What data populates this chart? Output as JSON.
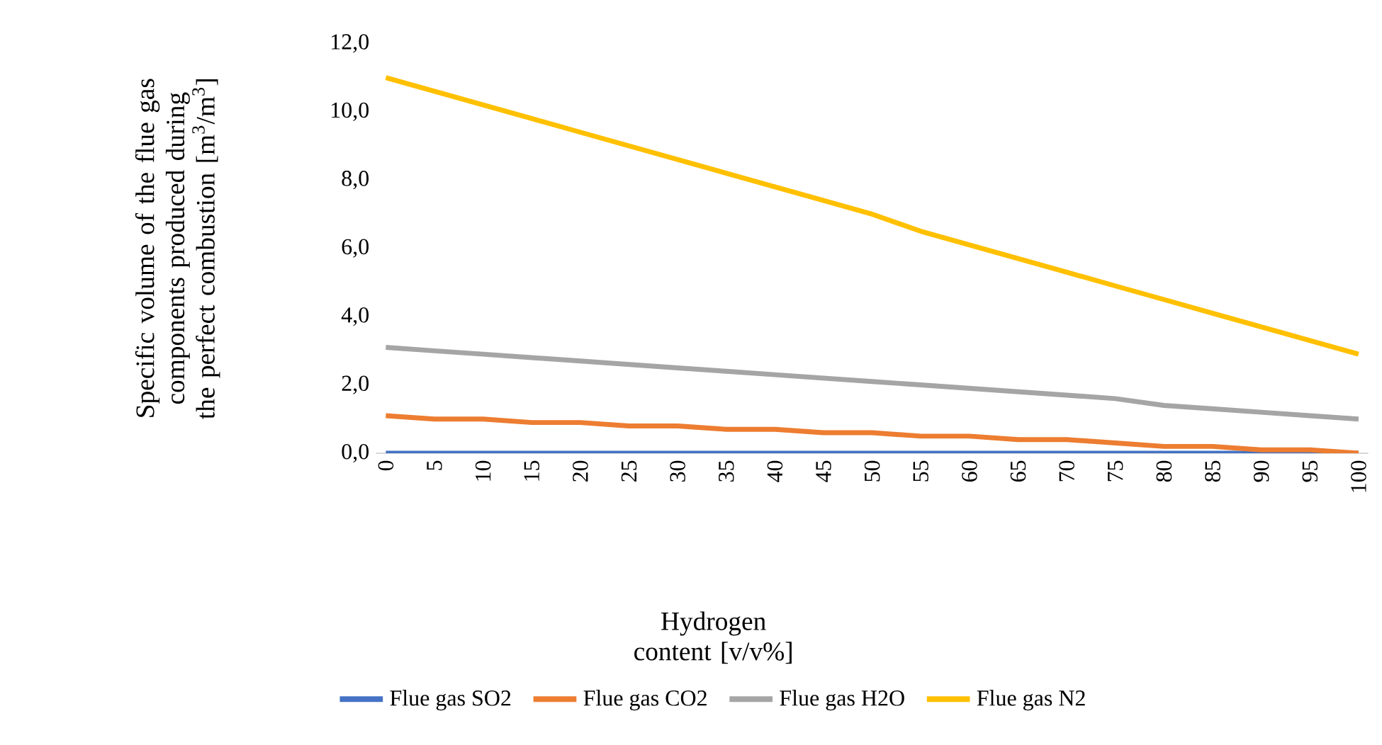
{
  "chart_data": {
    "type": "line",
    "xlabel": "Hydrogen content [v/v%]",
    "ylabel": "Specific volume of the flue gas components produced during the perfect combustion [m$^{3}$/m$^{3}$]",
    "categories": [
      "0",
      "5",
      "10",
      "15",
      "20",
      "25",
      "30",
      "35",
      "40",
      "45",
      "50",
      "55",
      "60",
      "65",
      "70",
      "75",
      "80",
      "85",
      "90",
      "95",
      "100"
    ],
    "ylim": [
      0,
      12
    ],
    "yticks": [
      {
        "value": 0,
        "label": "0,0"
      },
      {
        "value": 2,
        "label": "2,0"
      },
      {
        "value": 4,
        "label": "4,0"
      },
      {
        "value": 6,
        "label": "6,0"
      },
      {
        "value": 8,
        "label": "8,0"
      },
      {
        "value": 10,
        "label": "10,0"
      },
      {
        "value": 12,
        "label": "12,0"
      }
    ],
    "series": [
      {
        "name": "Flue gas SO2",
        "color": "#4472c4",
        "values": [
          0,
          0,
          0,
          0,
          0,
          0,
          0,
          0,
          0,
          0,
          0,
          0,
          0,
          0,
          0,
          0,
          0,
          0,
          0,
          0,
          0
        ]
      },
      {
        "name": "Flue gas CO2",
        "color": "#ed7d31",
        "values": [
          1.1,
          1.0,
          1.0,
          0.9,
          0.9,
          0.8,
          0.8,
          0.7,
          0.7,
          0.6,
          0.6,
          0.5,
          0.5,
          0.4,
          0.4,
          0.3,
          0.2,
          0.2,
          0.1,
          0.1,
          0.0
        ]
      },
      {
        "name": "Flue gas H2O",
        "color": "#a5a5a5",
        "values": [
          3.1,
          3.0,
          2.9,
          2.8,
          2.7,
          2.6,
          2.5,
          2.4,
          2.3,
          2.2,
          2.1,
          2.0,
          1.9,
          1.8,
          1.7,
          1.6,
          1.4,
          1.3,
          1.2,
          1.1,
          1.0
        ]
      },
      {
        "name": "Flue gas N2",
        "color": "#ffc000",
        "values": [
          11.0,
          10.6,
          10.2,
          9.8,
          9.4,
          9.0,
          8.6,
          8.2,
          7.8,
          7.4,
          7.0,
          6.5,
          6.1,
          5.7,
          5.3,
          4.9,
          4.5,
          4.1,
          3.7,
          3.3,
          2.9
        ]
      }
    ],
    "legend": "bottom",
    "marker": "none",
    "line_style": "solid",
    "grid": false
  }
}
